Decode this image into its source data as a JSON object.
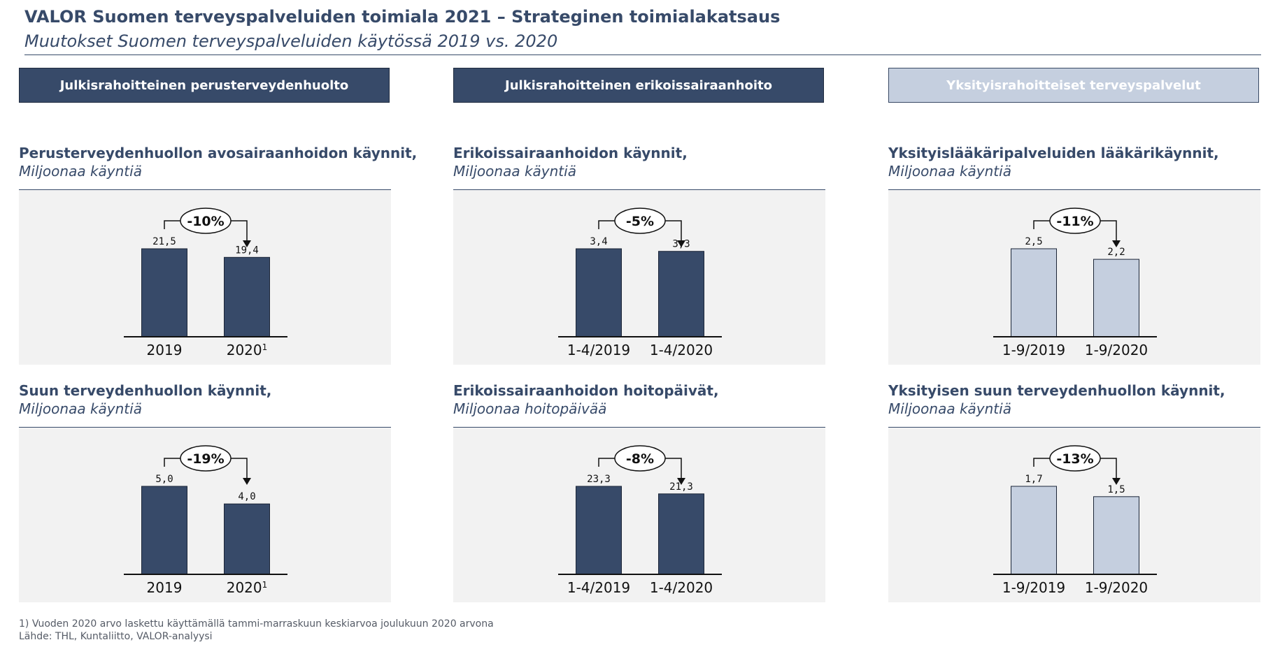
{
  "header": {
    "title": "VALOR Suomen terveyspalveluiden toimiala 2021 – Strateginen toimialakatsaus",
    "subtitle": "Muutokset Suomen terveyspalveluiden käytössä 2019 vs. 2020"
  },
  "categories": [
    "Julkisrahoitteinen perusterveydenhuolto",
    "Julkisrahoitteinen erikoissairaanhoito",
    "Yksityisrahoitteiset terveyspalvelut"
  ],
  "colors": {
    "dark_bar": "#374a69",
    "light_bar": "#c5cfdf",
    "panel_bg": "#f2f2f2",
    "text": "#374a69"
  },
  "chart_data": [
    {
      "type": "bar",
      "title": "Perusterveydenhuollon avosairaanhoidon käynnit,",
      "subtitle": "Miljoonaa käyntiä",
      "categories": [
        "2019",
        "2020"
      ],
      "category_superscripts": [
        "",
        "1"
      ],
      "values": [
        21.5,
        19.4
      ],
      "value_labels": [
        "21,5",
        "19,4"
      ],
      "change": "-10%",
      "bar_color": "dark"
    },
    {
      "type": "bar",
      "title": "Erikoissairaanhoidon käynnit,",
      "subtitle": "Miljoonaa käyntiä",
      "categories": [
        "1-4/2019",
        "1-4/2020"
      ],
      "category_superscripts": [
        "",
        ""
      ],
      "values": [
        3.4,
        3.3
      ],
      "value_labels": [
        "3,4",
        "3,3"
      ],
      "change": "-5%",
      "bar_color": "dark"
    },
    {
      "type": "bar",
      "title": "Yksityislääkäripalveluiden lääkärikäynnit,",
      "subtitle": "Miljoonaa käyntiä",
      "categories": [
        "1-9/2019",
        "1-9/2020"
      ],
      "category_superscripts": [
        "",
        ""
      ],
      "values": [
        2.5,
        2.2
      ],
      "value_labels": [
        "2,5",
        "2,2"
      ],
      "change": "-11%",
      "bar_color": "light"
    },
    {
      "type": "bar",
      "title": "Suun terveydenhuollon käynnit,",
      "subtitle": "Miljoonaa käyntiä",
      "categories": [
        "2019",
        "2020"
      ],
      "category_superscripts": [
        "",
        "1"
      ],
      "values": [
        5.0,
        4.0
      ],
      "value_labels": [
        "5,0",
        "4,0"
      ],
      "change": "-19%",
      "bar_color": "dark"
    },
    {
      "type": "bar",
      "title": "Erikoissairaanhoidon hoitopäivät,",
      "subtitle": "Miljoonaa hoitopäivää",
      "categories": [
        "1-4/2019",
        "1-4/2020"
      ],
      "category_superscripts": [
        "",
        ""
      ],
      "values": [
        23.3,
        21.3
      ],
      "value_labels": [
        "23,3",
        "21,3"
      ],
      "change": "-8%",
      "bar_color": "dark"
    },
    {
      "type": "bar",
      "title": "Yksityisen suun terveydenhuollon käynnit,",
      "subtitle": "Miljoonaa käyntiä",
      "categories": [
        "1-9/2019",
        "1-9/2020"
      ],
      "category_superscripts": [
        "",
        ""
      ],
      "values": [
        1.7,
        1.5
      ],
      "value_labels": [
        "1,7",
        "1,5"
      ],
      "change": "-13%",
      "bar_color": "light"
    }
  ],
  "footnote": "1) Vuoden 2020 arvo laskettu käyttämällä tammi-marraskuun keskiarvoa joulukuun 2020 arvona",
  "source": "Lähde: THL, Kuntaliitto, VALOR-analyysi"
}
